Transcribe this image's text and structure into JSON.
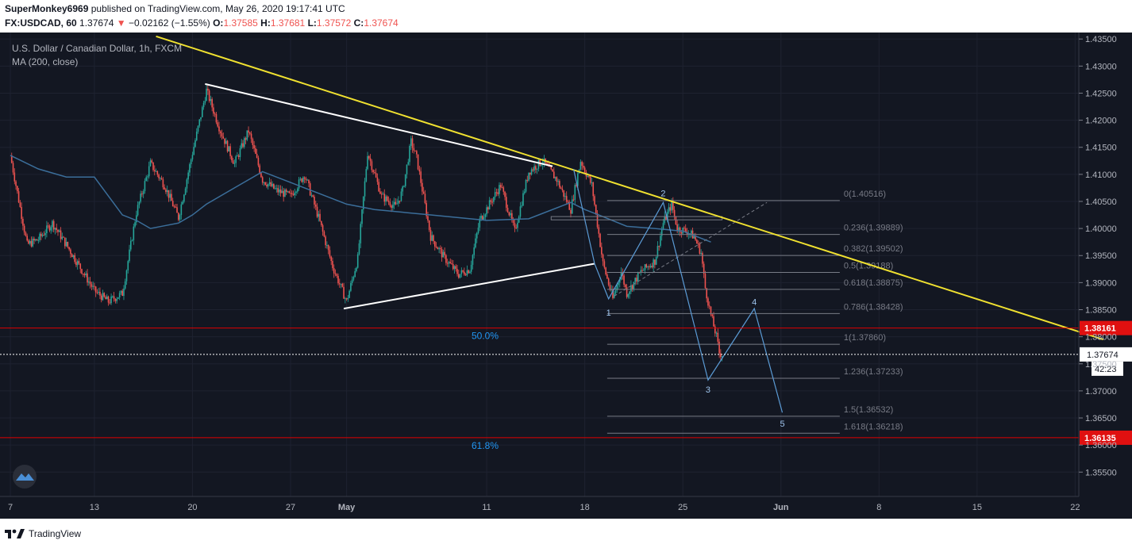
{
  "header": {
    "author": "SuperMonkey6969",
    "published": " published on TradingView.com, May 26, 2020 19:17:41 UTC",
    "symbol": "FX:USDCAD, 60",
    "last": "1.37674",
    "change": "−0.02162 (−1.55%)",
    "o_label": "O:",
    "o_val": "1.37585",
    "h_label": "H:",
    "h_val": "1.37681",
    "l_label": "L:",
    "l_val": "1.37572",
    "c_label": "C:",
    "c_val": "1.37674"
  },
  "legend": {
    "title": "U.S. Dollar / Canadian Dollar, 1h, FXCM",
    "ma": "MA (200, close)"
  },
  "footer": {
    "brand": "TradingView"
  },
  "colors": {
    "background": "#131722",
    "grid": "#1e2230",
    "up": "#26a69a",
    "down": "#ef5350",
    "ma": "#3b6e9a",
    "trend_yellow": "#f0e130",
    "triangle": "#ffffff",
    "fib": "#787b86",
    "wave": "#5b9bd5",
    "level_line": "#e00000",
    "label_blue": "#2196f3"
  },
  "chart_data": {
    "type": "candlestick",
    "title": "U.S. Dollar / Canadian Dollar, 1h, FXCM",
    "indicator": "MA (200, close)",
    "x_ticks": [
      {
        "label": "7",
        "day": 0
      },
      {
        "label": "13",
        "day": 6
      },
      {
        "label": "20",
        "day": 13
      },
      {
        "label": "27",
        "day": 20
      },
      {
        "label": "May",
        "day": 24
      },
      {
        "label": "11",
        "day": 34
      },
      {
        "label": "18",
        "day": 41
      },
      {
        "label": "25",
        "day": 48
      },
      {
        "label": "Jun",
        "day": 55
      },
      {
        "label": "8",
        "day": 62
      },
      {
        "label": "15",
        "day": 69
      },
      {
        "label": "22",
        "day": 76
      }
    ],
    "y_ticks": [
      "1.43500",
      "1.43000",
      "1.42500",
      "1.42000",
      "1.41500",
      "1.41000",
      "1.40500",
      "1.40000",
      "1.39500",
      "1.39000",
      "1.38500",
      "1.38000",
      "1.37500",
      "1.37000",
      "1.36500",
      "1.36000",
      "1.35500"
    ],
    "ylim": [
      1.3505,
      1.4362
    ],
    "price_path": [
      [
        0,
        1.4135
      ],
      [
        1.2,
        1.397
      ],
      [
        2,
        1.398
      ],
      [
        3,
        1.401
      ],
      [
        4,
        1.397
      ],
      [
        6,
        1.3885
      ],
      [
        7,
        1.3865
      ],
      [
        8,
        1.388
      ],
      [
        9,
        1.403
      ],
      [
        10,
        1.412
      ],
      [
        11,
        1.408
      ],
      [
        12,
        1.402
      ],
      [
        13,
        1.414
      ],
      [
        14,
        1.4255
      ],
      [
        15,
        1.418
      ],
      [
        16,
        1.412
      ],
      [
        17,
        1.418
      ],
      [
        18,
        1.409
      ],
      [
        19,
        1.407
      ],
      [
        20,
        1.406
      ],
      [
        21,
        1.41
      ],
      [
        22,
        1.402
      ],
      [
        23,
        1.393
      ],
      [
        24,
        1.3865
      ],
      [
        24.8,
        1.3945
      ],
      [
        25.5,
        1.414
      ],
      [
        26.5,
        1.406
      ],
      [
        27.5,
        1.404
      ],
      [
        28,
        1.407
      ],
      [
        28.6,
        1.416
      ],
      [
        29,
        1.413
      ],
      [
        30,
        1.3985
      ],
      [
        31,
        1.3945
      ],
      [
        32,
        1.3915
      ],
      [
        32.8,
        1.3925
      ],
      [
        33.5,
        1.4015
      ],
      [
        35,
        1.408
      ],
      [
        36,
        1.3995
      ],
      [
        37,
        1.4105
      ],
      [
        38,
        1.4125
      ],
      [
        39,
        1.409
      ],
      [
        40,
        1.4035
      ],
      [
        40.7,
        1.4125
      ],
      [
        41.5,
        1.408
      ],
      [
        42,
        1.399
      ],
      [
        42.3,
        1.3935
      ],
      [
        43,
        1.387
      ],
      [
        43.6,
        1.392
      ],
      [
        44,
        1.388
      ],
      [
        45,
        1.392
      ],
      [
        46,
        1.394
      ],
      [
        46.6,
        1.401
      ],
      [
        47.2,
        1.4045
      ],
      [
        47.6,
        1.4
      ],
      [
        48.3,
        1.3995
      ],
      [
        48.8,
        1.3985
      ],
      [
        49.3,
        1.3955
      ],
      [
        49.6,
        1.389
      ],
      [
        50,
        1.384
      ],
      [
        50.4,
        1.38
      ],
      [
        50.6,
        1.377
      ],
      [
        50.8,
        1.37674
      ]
    ],
    "ma200": [
      [
        0,
        1.4135
      ],
      [
        2,
        1.411
      ],
      [
        4,
        1.4095
      ],
      [
        6,
        1.4095
      ],
      [
        8,
        1.4025
      ],
      [
        9,
        1.4015
      ],
      [
        10,
        1.4
      ],
      [
        11,
        1.4005
      ],
      [
        12,
        1.401
      ],
      [
        13,
        1.4025
      ],
      [
        14,
        1.4045
      ],
      [
        16,
        1.4075
      ],
      [
        18,
        1.4105
      ],
      [
        20,
        1.4085
      ],
      [
        22,
        1.4065
      ],
      [
        24,
        1.4045
      ],
      [
        26,
        1.4035
      ],
      [
        30,
        1.4025
      ],
      [
        34,
        1.4015
      ],
      [
        37,
        1.4018
      ],
      [
        38,
        1.4028
      ],
      [
        40,
        1.4048
      ],
      [
        41,
        1.4035
      ],
      [
        42,
        1.4025
      ],
      [
        44,
        1.4004
      ],
      [
        46,
        1.4
      ],
      [
        48,
        1.3995
      ],
      [
        50,
        1.3975
      ]
    ],
    "drawings": {
      "yellow_trendline": {
        "from": [
          10.4,
          1.4355
        ],
        "to": [
          78,
          1.3795
        ]
      },
      "triangle_upper": {
        "from": [
          13.9,
          1.4267
        ],
        "to": [
          38.7,
          1.4115
        ]
      },
      "triangle_lower": {
        "from": [
          23.8,
          1.3852
        ],
        "to": [
          41.7,
          1.3935
        ]
      },
      "fib_ext_dashed": {
        "from": [
          43.1,
          1.3875
        ],
        "to": [
          54,
          1.4048
        ]
      },
      "wave_path": [
        [
          40.2,
          1.411
        ],
        [
          41.7,
          1.3935
        ],
        [
          42.7,
          1.387
        ],
        [
          46.6,
          1.4048
        ],
        [
          49.8,
          1.372
        ],
        [
          53.1,
          1.3852
        ],
        [
          55.1,
          1.366
        ]
      ],
      "wave_labels": [
        {
          "label": "1",
          "pos": [
            42.7,
            1.3845
          ]
        },
        {
          "label": "2",
          "pos": [
            46.6,
            1.4065
          ]
        },
        {
          "label": "3",
          "pos": [
            49.8,
            1.3703
          ]
        },
        {
          "label": "4",
          "pos": [
            53.1,
            1.3865
          ]
        },
        {
          "label": "5",
          "pos": [
            55.1,
            1.364
          ]
        }
      ],
      "fib_levels": [
        {
          "label": "0(1.40516)",
          "price": 1.40516
        },
        {
          "label": "0.236(1.39889)",
          "price": 1.39889
        },
        {
          "label": "0.382(1.39502)",
          "price": 1.39502
        },
        {
          "label": "0.5(1.39188)",
          "price": 1.39188
        },
        {
          "label": "0.618(1.38875)",
          "price": 1.38875
        },
        {
          "label": "0.786(1.38428)",
          "price": 1.38428
        },
        {
          "label": "1(1.37860)",
          "price": 1.3786
        },
        {
          "label": "1.236(1.37233)",
          "price": 1.37233
        },
        {
          "label": "1.5(1.36532)",
          "price": 1.36532
        },
        {
          "label": "1.618(1.36218)",
          "price": 1.36218
        }
      ],
      "fib_x_range": [
        42.6,
        59.2
      ],
      "horizontal_levels": [
        {
          "price": 1.38161,
          "label": "1.38161",
          "note": "50.0%"
        },
        {
          "price": 1.36135,
          "label": "1.36135",
          "note": "61.8%"
        }
      ],
      "current_price": {
        "price": 1.37674,
        "label": "1.37674",
        "countdown": "42:23"
      },
      "rect_zone": {
        "x": [
          38.6,
          50.8
        ],
        "y": [
          1.4022,
          1.4016
        ]
      }
    }
  }
}
